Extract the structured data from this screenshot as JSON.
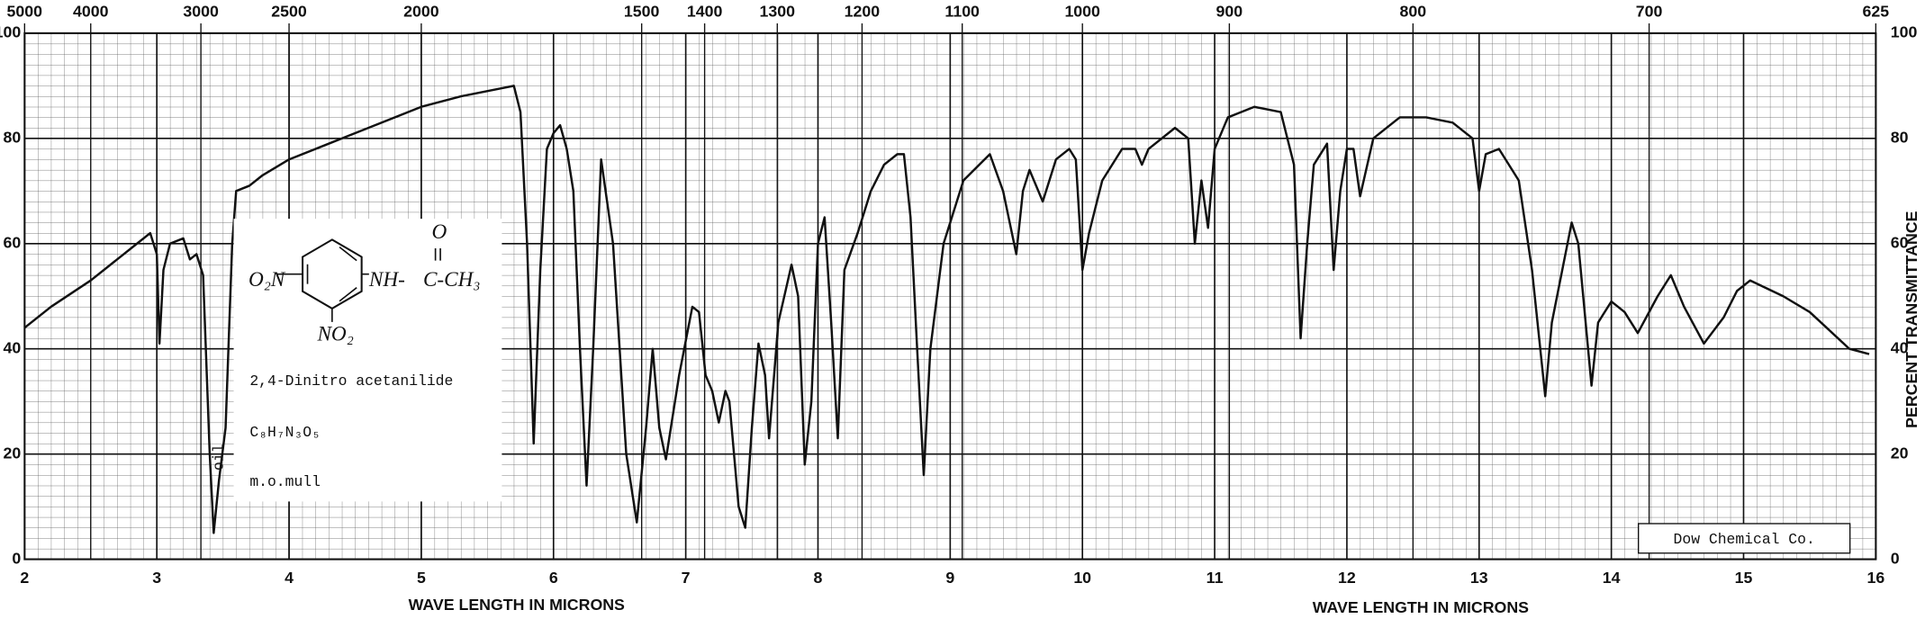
{
  "chart_data": {
    "type": "line",
    "x_label": "WAVE LENGTH IN MICRONS",
    "x_label_right": "WAVE LENGTH IN MICRONS",
    "y_label": "PERCENT TRANSMITTANCE",
    "xlim": [
      2,
      16
    ],
    "xticks": [
      2,
      3,
      4,
      5,
      6,
      7,
      8,
      9,
      10,
      11,
      12,
      13,
      14,
      15,
      16
    ],
    "ylim": [
      0,
      100
    ],
    "yticks": [
      0,
      20,
      40,
      60,
      80,
      100
    ],
    "x2_scale": "reciprocal",
    "x2ticks": [
      5000,
      4000,
      3000,
      2500,
      2000,
      1500,
      1400,
      1300,
      1200,
      1100,
      1000,
      900,
      800,
      700,
      625
    ],
    "grid": true,
    "color": "#111111",
    "x": [
      2.0,
      2.2,
      2.5,
      2.7,
      2.85,
      2.95,
      3.0,
      3.02,
      3.05,
      3.1,
      3.2,
      3.25,
      3.3,
      3.35,
      3.4,
      3.43,
      3.47,
      3.52,
      3.57,
      3.6,
      3.7,
      3.8,
      4.0,
      4.3,
      4.6,
      5.0,
      5.3,
      5.6,
      5.7,
      5.75,
      5.8,
      5.85,
      5.9,
      5.95,
      6.0,
      6.05,
      6.1,
      6.15,
      6.2,
      6.25,
      6.3,
      6.36,
      6.45,
      6.55,
      6.63,
      6.7,
      6.75,
      6.8,
      6.85,
      6.95,
      7.05,
      7.1,
      7.15,
      7.2,
      7.25,
      7.3,
      7.33,
      7.4,
      7.45,
      7.5,
      7.55,
      7.6,
      7.63,
      7.7,
      7.8,
      7.85,
      7.9,
      7.95,
      8.0,
      8.05,
      8.1,
      8.15,
      8.2,
      8.3,
      8.4,
      8.5,
      8.6,
      8.65,
      8.7,
      8.75,
      8.8,
      8.85,
      8.95,
      9.1,
      9.3,
      9.4,
      9.5,
      9.55,
      9.6,
      9.7,
      9.8,
      9.9,
      9.95,
      10.0,
      10.05,
      10.15,
      10.3,
      10.4,
      10.45,
      10.5,
      10.7,
      10.8,
      10.85,
      10.9,
      10.95,
      11.0,
      11.1,
      11.3,
      11.5,
      11.6,
      11.65,
      11.7,
      11.75,
      11.85,
      11.9,
      11.95,
      12.0,
      12.05,
      12.1,
      12.2,
      12.4,
      12.6,
      12.8,
      12.95,
      13.0,
      13.05,
      13.15,
      13.3,
      13.4,
      13.5,
      13.55,
      13.7,
      13.75,
      13.85,
      13.9,
      14.0,
      14.1,
      14.2,
      14.35,
      14.45,
      14.55,
      14.7,
      14.85,
      14.95,
      15.05,
      15.3,
      15.5,
      15.8,
      15.95
    ],
    "values": [
      44,
      48,
      53,
      57,
      60,
      62,
      58,
      41,
      55,
      60,
      61,
      57,
      58,
      54,
      20,
      5,
      15,
      25,
      60,
      70,
      71,
      73,
      76,
      79,
      82,
      86,
      88,
      89.5,
      90,
      85,
      60,
      22,
      55,
      78,
      81,
      82.5,
      78,
      70,
      40,
      14,
      40,
      76,
      60,
      20,
      7,
      25,
      40,
      25,
      19,
      35,
      48,
      47,
      35,
      32,
      26,
      32,
      30,
      10,
      6,
      25,
      41,
      35,
      23,
      45,
      56,
      50,
      18,
      30,
      60,
      65,
      45,
      23,
      55,
      62,
      70,
      75,
      77,
      77,
      65,
      40,
      16,
      40,
      60,
      72,
      77,
      70,
      58,
      70,
      74,
      68,
      76,
      78,
      76,
      55,
      62,
      72,
      78,
      78,
      75,
      78,
      82,
      80,
      60,
      72,
      63,
      78,
      84,
      86,
      85,
      75,
      42,
      60,
      75,
      79,
      55,
      70,
      78,
      78,
      69,
      80,
      84,
      84,
      83,
      80,
      70,
      77,
      78,
      72,
      55,
      31,
      45,
      64,
      60,
      33,
      45,
      49,
      47,
      43,
      50,
      54,
      48,
      41,
      46,
      51,
      53,
      50,
      47,
      40,
      39
    ],
    "annotations": {
      "oil": "oil",
      "compound": "2,4-Dinitro acetanilide",
      "formula": "C₈H₇N₃O₅",
      "medium": "m.o.mull",
      "credit": "Dow Chemical Co."
    },
    "structure": {
      "left": "O₂N",
      "amine": "NH-",
      "acyl": "C-CH₃",
      "oxygen": "O",
      "nitro": "NO₂"
    }
  }
}
